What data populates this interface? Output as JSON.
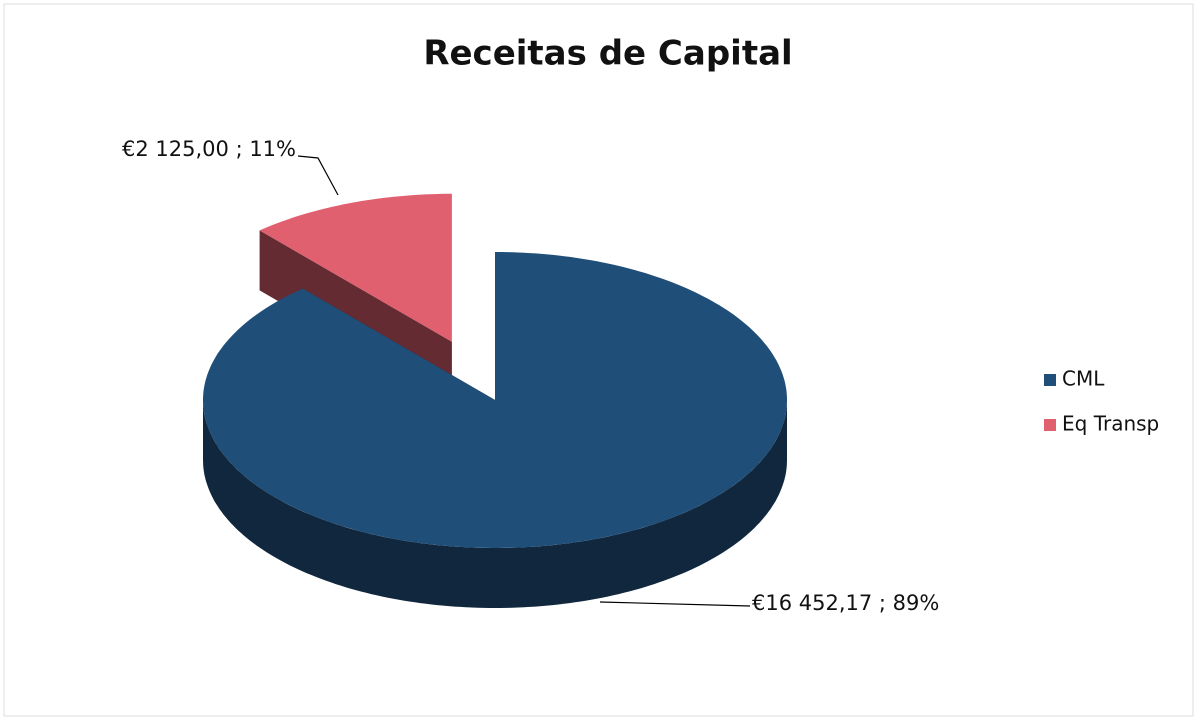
{
  "chart_data": {
    "type": "pie",
    "title": "Receitas de Capital",
    "categories": [
      "CML",
      "Eq Transp"
    ],
    "values": [
      16452.17,
      2125.0
    ],
    "value_labels": [
      "€16 452,17 ; 89%",
      "€2 125,00 ; 11%"
    ],
    "colors": [
      "#1f4e79",
      "#e06070"
    ],
    "legend": "right"
  }
}
